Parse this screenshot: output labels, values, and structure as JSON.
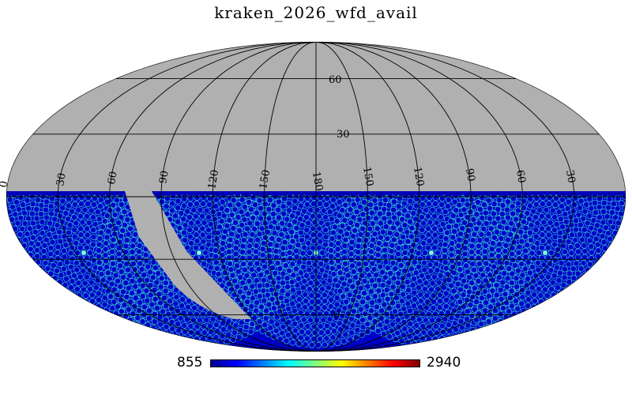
{
  "title": "kraken_2026_wfd_avail",
  "projection": "mollweide",
  "colors": {
    "background": "#ffffff",
    "unobserved": "#b0b0b0",
    "graticule": "#000000",
    "field_low": "#0000c8",
    "field_mid": "#40e0d0",
    "field_center": "#7fffd4"
  },
  "colorbar": {
    "min_label": "855",
    "max_label": "2940",
    "colormap": "jet",
    "stops": [
      "#00008f",
      "#0000ff",
      "#007fff",
      "#00ffff",
      "#7fff7f",
      "#ffff00",
      "#ff7f00",
      "#ff0000",
      "#7f0000"
    ]
  },
  "graticule": {
    "lat_labels": [
      "60",
      "30",
      "0"
    ],
    "lon_labels": [
      "0",
      "30",
      "60",
      "90",
      "120",
      "150",
      "180",
      "150",
      "120",
      "90",
      "60",
      "30"
    ]
  },
  "coverage": {
    "dec_max_deg": 3,
    "dec_min_deg": -90,
    "galactic_plane_gap": true
  }
}
